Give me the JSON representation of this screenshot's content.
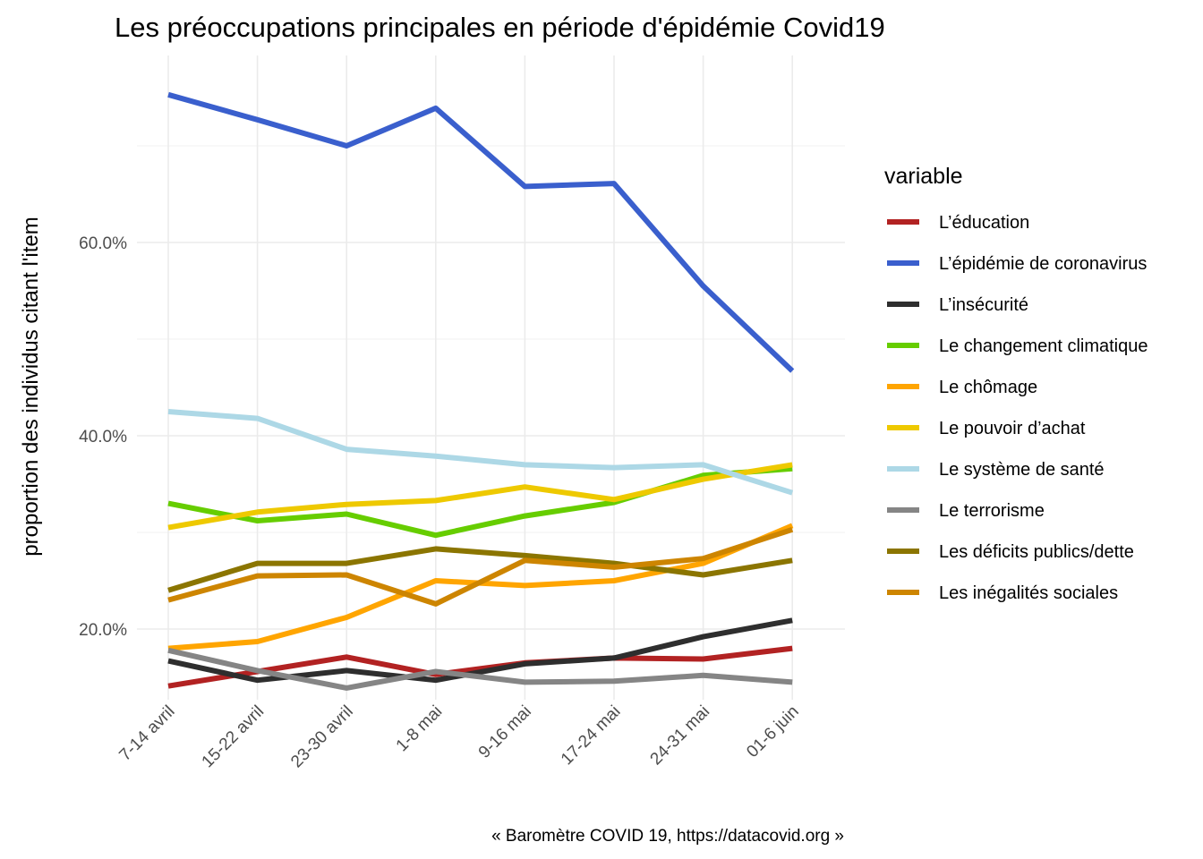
{
  "chart_data": {
    "type": "line",
    "title": "Les préoccupations principales en période d'épidémie Covid19",
    "ylabel": "proportion des individus citant l'item",
    "xlabel": "",
    "caption": "« Baromètre COVID 19, https://datacovid.org »",
    "categories": [
      "7-14 avril",
      "15-22 avril",
      "23-30 avril",
      "1-8 mai",
      "9-16 mai",
      "17-24 mai",
      "24-31 mai",
      "01-6 juin"
    ],
    "ylim": [
      0.125,
      0.79
    ],
    "yticks": [
      0.2,
      0.4,
      0.6
    ],
    "ytick_labels": [
      "20.0%",
      "40.0%",
      "60.0%"
    ],
    "grid": true,
    "legend": {
      "title": "variable",
      "position": "right"
    },
    "series": [
      {
        "name": "L’éducation",
        "color": "#b22222",
        "values": [
          0.141,
          0.156,
          0.171,
          0.153,
          0.165,
          0.17,
          0.169,
          0.18
        ]
      },
      {
        "name": "L’épidémie de coronavirus",
        "color": "#3a5fcd",
        "values": [
          0.753,
          0.727,
          0.7,
          0.739,
          0.658,
          0.661,
          0.555,
          0.467
        ]
      },
      {
        "name": "L’insécurité",
        "color": "#2e2e2e",
        "values": [
          0.167,
          0.147,
          0.157,
          0.147,
          0.164,
          0.17,
          0.192,
          0.209
        ]
      },
      {
        "name": "Le changement climatique",
        "color": "#66cd00",
        "values": [
          0.33,
          0.312,
          0.319,
          0.297,
          0.317,
          0.331,
          0.359,
          0.366
        ]
      },
      {
        "name": "Le chômage",
        "color": "#ffa500",
        "values": [
          0.18,
          0.187,
          0.212,
          0.25,
          0.245,
          0.25,
          0.268,
          0.307
        ]
      },
      {
        "name": "Le pouvoir d’achat",
        "color": "#eec900",
        "values": [
          0.305,
          0.321,
          0.329,
          0.333,
          0.347,
          0.334,
          0.355,
          0.37
        ]
      },
      {
        "name": "Le système de santé",
        "color": "#add8e6",
        "values": [
          0.425,
          0.418,
          0.386,
          0.379,
          0.37,
          0.367,
          0.37,
          0.341
        ]
      },
      {
        "name": "Le terrorisme",
        "color": "#858585",
        "values": [
          0.178,
          0.157,
          0.139,
          0.156,
          0.145,
          0.146,
          0.152,
          0.145
        ]
      },
      {
        "name": "Les déficits publics/dette",
        "color": "#8b7500",
        "values": [
          0.24,
          0.268,
          0.268,
          0.283,
          0.276,
          0.268,
          0.256,
          0.271
        ]
      },
      {
        "name": "Les inégalités sociales",
        "color": "#cd8500",
        "values": [
          0.23,
          0.255,
          0.256,
          0.226,
          0.271,
          0.264,
          0.273,
          0.303
        ]
      }
    ]
  }
}
